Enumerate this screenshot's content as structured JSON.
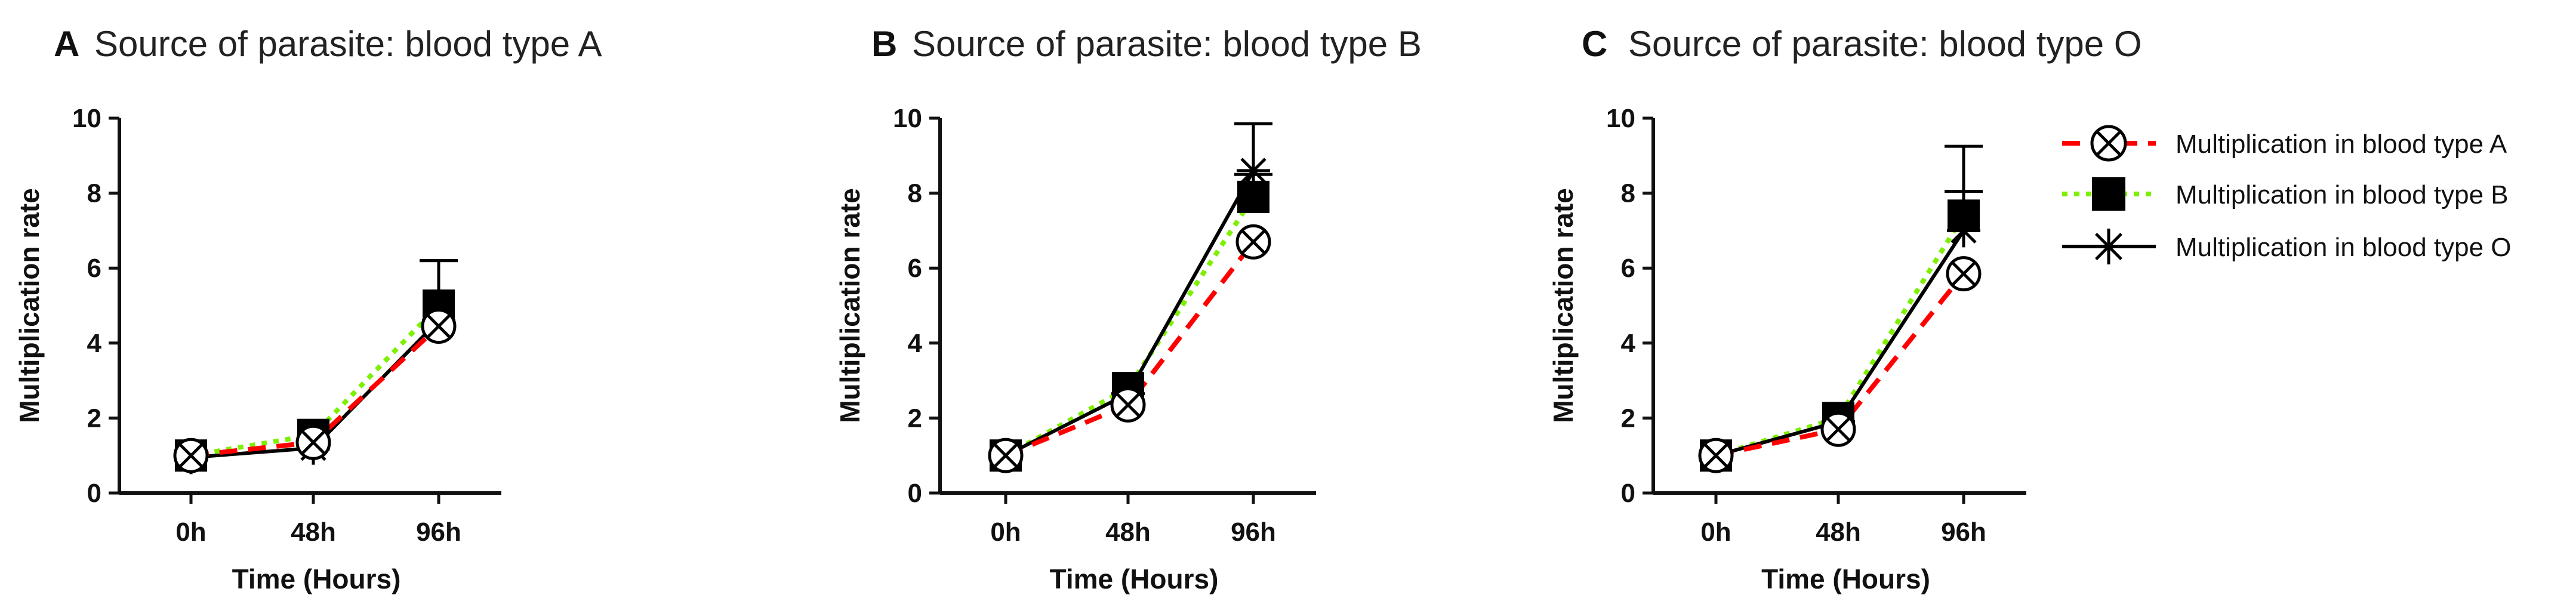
{
  "chart_data": [
    {
      "type": "line",
      "panel": "A",
      "title": "Source of parasite: blood type A",
      "xlabel": "Time (Hours)",
      "ylabel": "Multiplication rate",
      "categories": [
        "0h",
        "48h",
        "96h"
      ],
      "ylim": [
        0,
        10
      ],
      "yticks": [
        0,
        2,
        4,
        6,
        8,
        10
      ],
      "series": [
        {
          "name": "Multiplication in blood type A",
          "values": [
            1.0,
            1.35,
            4.45
          ],
          "error": [
            0,
            0,
            0
          ]
        },
        {
          "name": "Multiplication in blood type B",
          "values": [
            1.0,
            1.55,
            5.0
          ],
          "error": [
            0,
            0,
            1.2
          ]
        },
        {
          "name": "Multiplication in blood type O",
          "values": [
            0.95,
            1.2,
            4.6
          ],
          "error": [
            0,
            0,
            1.6
          ]
        }
      ]
    },
    {
      "type": "line",
      "panel": "B",
      "title": "Source of parasite: blood type B",
      "xlabel": "Time (Hours)",
      "ylabel": "Multiplication rate",
      "categories": [
        "0h",
        "48h",
        "96h"
      ],
      "ylim": [
        0,
        10
      ],
      "yticks": [
        0,
        2,
        4,
        6,
        8,
        10
      ],
      "series": [
        {
          "name": "Multiplication in blood type A",
          "values": [
            1.0,
            2.35,
            6.7
          ],
          "error": [
            0,
            0,
            0
          ]
        },
        {
          "name": "Multiplication in blood type B",
          "values": [
            1.0,
            2.8,
            7.9
          ],
          "error": [
            0,
            0,
            0.6
          ]
        },
        {
          "name": "Multiplication in blood type O",
          "values": [
            1.0,
            2.65,
            8.6
          ],
          "error": [
            0,
            0,
            1.25
          ]
        }
      ]
    },
    {
      "type": "line",
      "panel": "C",
      "title": "Source of parasite: blood type O",
      "xlabel": "Time (Hours)",
      "ylabel": "Multiplication rate",
      "categories": [
        "0h",
        "48h",
        "96h"
      ],
      "ylim": [
        0,
        10
      ],
      "yticks": [
        0,
        2,
        4,
        6,
        8,
        10
      ],
      "series": [
        {
          "name": "Multiplication in blood type A",
          "values": [
            1.0,
            1.7,
            5.85
          ],
          "error": [
            0,
            0,
            0
          ]
        },
        {
          "name": "Multiplication in blood type B",
          "values": [
            1.0,
            2.0,
            7.4
          ],
          "error": [
            0,
            0,
            0.65
          ]
        },
        {
          "name": "Multiplication in blood type O",
          "values": [
            1.0,
            1.9,
            7.0
          ],
          "error": [
            0,
            0,
            2.25
          ]
        }
      ]
    }
  ],
  "legend": {
    "items": [
      {
        "label": "Multiplication in blood type A",
        "marker": "circle-x",
        "color": "#ff0000",
        "dash": "dashed"
      },
      {
        "label": "Multiplication in blood type B",
        "marker": "square",
        "color": "#7cf000",
        "dash": "dotted"
      },
      {
        "label": "Multiplication in blood type O",
        "marker": "asterisk",
        "color": "#000000",
        "dash": "solid"
      }
    ]
  },
  "colors": {
    "series_a": "#ff0000",
    "series_b": "#7cf000",
    "series_o": "#000000",
    "axis": "#111111"
  }
}
